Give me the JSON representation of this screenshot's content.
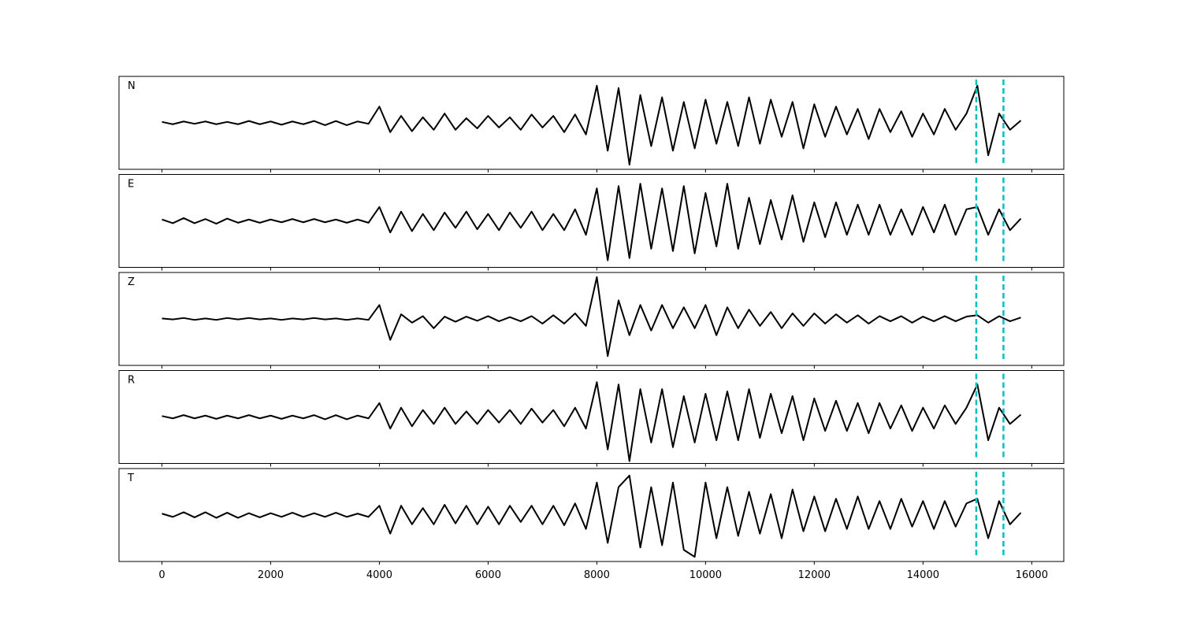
{
  "chart_data": [
    {
      "type": "line",
      "label": "N",
      "color": "#000000",
      "xlim": [
        -790,
        16590
      ],
      "ylim": [
        -1,
        1
      ],
      "vlines": [
        14980,
        15480
      ],
      "vline_color": "#00bfbf",
      "x": [
        0,
        200,
        400,
        600,
        800,
        1000,
        1200,
        1400,
        1600,
        1800,
        2000,
        2200,
        2400,
        2600,
        2800,
        3000,
        3200,
        3400,
        3600,
        3800,
        4000,
        4200,
        4400,
        4600,
        4800,
        5000,
        5200,
        5400,
        5600,
        5800,
        6000,
        6200,
        6400,
        6600,
        6800,
        7000,
        7200,
        7400,
        7600,
        7800,
        8000,
        8200,
        8400,
        8600,
        8800,
        9000,
        9200,
        9400,
        9600,
        9800,
        10000,
        10200,
        10400,
        10600,
        10800,
        11000,
        11200,
        11400,
        11600,
        11800,
        12000,
        12200,
        12400,
        12600,
        12800,
        13000,
        13200,
        13400,
        13600,
        13800,
        14000,
        14200,
        14400,
        14600,
        14800,
        15000,
        15200,
        15400,
        15600,
        15800
      ],
      "values": [
        0.02,
        -0.03,
        0.03,
        -0.02,
        0.03,
        -0.03,
        0.02,
        -0.03,
        0.04,
        -0.03,
        0.03,
        -0.04,
        0.03,
        -0.03,
        0.04,
        -0.05,
        0.04,
        -0.05,
        0.03,
        -0.02,
        0.35,
        -0.2,
        0.15,
        -0.18,
        0.12,
        -0.15,
        0.2,
        -0.15,
        0.1,
        -0.12,
        0.15,
        -0.1,
        0.12,
        -0.15,
        0.18,
        -0.1,
        0.15,
        -0.2,
        0.18,
        -0.25,
        0.8,
        -0.6,
        0.75,
        -0.9,
        0.6,
        -0.5,
        0.55,
        -0.6,
        0.45,
        -0.55,
        0.5,
        -0.45,
        0.45,
        -0.5,
        0.55,
        -0.45,
        0.5,
        -0.3,
        0.45,
        -0.55,
        0.4,
        -0.3,
        0.35,
        -0.25,
        0.3,
        -0.35,
        0.3,
        -0.2,
        0.25,
        -0.3,
        0.2,
        -0.25,
        0.3,
        -0.15,
        0.2,
        0.8,
        -0.7,
        0.2,
        -0.15,
        0.05
      ]
    },
    {
      "type": "line",
      "label": "E",
      "color": "#000000",
      "xlim": [
        -790,
        16590
      ],
      "ylim": [
        -1,
        1
      ],
      "vlines": [
        14980,
        15480
      ],
      "vline_color": "#00bfbf",
      "x": [
        0,
        200,
        400,
        600,
        800,
        1000,
        1200,
        1400,
        1600,
        1800,
        2000,
        2200,
        2400,
        2600,
        2800,
        3000,
        3200,
        3400,
        3600,
        3800,
        4000,
        4200,
        4400,
        4600,
        4800,
        5000,
        5200,
        5400,
        5600,
        5800,
        6000,
        6200,
        6400,
        6600,
        6800,
        7000,
        7200,
        7400,
        7600,
        7800,
        8000,
        8200,
        8400,
        8600,
        8800,
        9000,
        9200,
        9400,
        9600,
        9800,
        10000,
        10200,
        10400,
        10600,
        10800,
        11000,
        11200,
        11400,
        11600,
        11800,
        12000,
        12200,
        12400,
        12600,
        12800,
        13000,
        13200,
        13400,
        13600,
        13800,
        14000,
        14200,
        14400,
        14600,
        14800,
        15000,
        15200,
        15400,
        15600,
        15800
      ],
      "values": [
        0.03,
        -0.05,
        0.06,
        -0.05,
        0.04,
        -0.06,
        0.05,
        -0.04,
        0.03,
        -0.04,
        0.03,
        -0.03,
        0.04,
        -0.03,
        0.04,
        -0.03,
        0.03,
        -0.04,
        0.03,
        -0.04,
        0.3,
        -0.25,
        0.2,
        -0.22,
        0.15,
        -0.2,
        0.18,
        -0.15,
        0.2,
        -0.18,
        0.15,
        -0.2,
        0.18,
        -0.15,
        0.2,
        -0.2,
        0.15,
        -0.2,
        0.25,
        -0.3,
        0.7,
        -0.85,
        0.75,
        -0.8,
        0.8,
        -0.6,
        0.7,
        -0.65,
        0.75,
        -0.7,
        0.6,
        -0.55,
        0.8,
        -0.6,
        0.5,
        -0.5,
        0.45,
        -0.4,
        0.55,
        -0.45,
        0.4,
        -0.35,
        0.4,
        -0.3,
        0.35,
        -0.3,
        0.35,
        -0.3,
        0.25,
        -0.3,
        0.3,
        -0.25,
        0.35,
        -0.3,
        0.25,
        0.3,
        -0.3,
        0.25,
        -0.2,
        0.05
      ]
    },
    {
      "type": "line",
      "label": "Z",
      "color": "#000000",
      "xlim": [
        -790,
        16590
      ],
      "ylim": [
        -1,
        1
      ],
      "vlines": [
        14980,
        15480
      ],
      "vline_color": "#00bfbf",
      "x": [
        0,
        200,
        400,
        600,
        800,
        1000,
        1200,
        1400,
        1600,
        1800,
        2000,
        2200,
        2400,
        2600,
        2800,
        3000,
        3200,
        3400,
        3600,
        3800,
        4000,
        4200,
        4400,
        4600,
        4800,
        5000,
        5200,
        5400,
        5600,
        5800,
        6000,
        6200,
        6400,
        6600,
        6800,
        7000,
        7200,
        7400,
        7600,
        7800,
        8000,
        8200,
        8400,
        8600,
        8800,
        9000,
        9200,
        9400,
        9600,
        9800,
        10000,
        10200,
        10400,
        10600,
        10800,
        11000,
        11200,
        11400,
        11600,
        11800,
        12000,
        12200,
        12400,
        12600,
        12800,
        13000,
        13200,
        13400,
        13600,
        13800,
        14000,
        14200,
        14400,
        14600,
        14800,
        15000,
        15200,
        15400,
        15600,
        15800
      ],
      "values": [
        0.01,
        -0.01,
        0.02,
        -0.02,
        0.01,
        -0.02,
        0.02,
        -0.01,
        0.02,
        -0.01,
        0.01,
        -0.02,
        0.01,
        -0.01,
        0.02,
        -0.01,
        0.01,
        -0.02,
        0.01,
        -0.02,
        0.3,
        -0.45,
        0.1,
        -0.08,
        0.06,
        -0.2,
        0.05,
        -0.06,
        0.05,
        -0.04,
        0.06,
        -0.05,
        0.04,
        -0.05,
        0.06,
        -0.1,
        0.08,
        -0.1,
        0.12,
        -0.15,
        0.9,
        -0.8,
        0.4,
        -0.35,
        0.3,
        -0.25,
        0.3,
        -0.2,
        0.25,
        -0.2,
        0.3,
        -0.35,
        0.25,
        -0.2,
        0.2,
        -0.15,
        0.15,
        -0.2,
        0.12,
        -0.15,
        0.12,
        -0.1,
        0.1,
        -0.08,
        0.08,
        -0.1,
        0.06,
        -0.05,
        0.06,
        -0.08,
        0.05,
        -0.05,
        0.06,
        -0.05,
        0.05,
        0.08,
        -0.08,
        0.06,
        -0.05,
        0.03
      ]
    },
    {
      "type": "line",
      "label": "R",
      "color": "#000000",
      "xlim": [
        -790,
        16590
      ],
      "ylim": [
        -1,
        1
      ],
      "vlines": [
        14980,
        15480
      ],
      "vline_color": "#00bfbf",
      "x": [
        0,
        200,
        400,
        600,
        800,
        1000,
        1200,
        1400,
        1600,
        1800,
        2000,
        2200,
        2400,
        2600,
        2800,
        3000,
        3200,
        3400,
        3600,
        3800,
        4000,
        4200,
        4400,
        4600,
        4800,
        5000,
        5200,
        5400,
        5600,
        5800,
        6000,
        6200,
        6400,
        6600,
        6800,
        7000,
        7200,
        7400,
        7600,
        7800,
        8000,
        8200,
        8400,
        8600,
        8800,
        9000,
        9200,
        9400,
        9600,
        9800,
        10000,
        10200,
        10400,
        10600,
        10800,
        11000,
        11200,
        11400,
        11600,
        11800,
        12000,
        12200,
        12400,
        12600,
        12800,
        13000,
        13200,
        13400,
        13600,
        13800,
        14000,
        14200,
        14400,
        14600,
        14800,
        15000,
        15200,
        15400,
        15600,
        15800
      ],
      "values": [
        0.02,
        -0.03,
        0.04,
        -0.03,
        0.03,
        -0.04,
        0.03,
        -0.03,
        0.04,
        -0.03,
        0.03,
        -0.04,
        0.03,
        -0.03,
        0.04,
        -0.05,
        0.04,
        -0.05,
        0.03,
        -0.03,
        0.3,
        -0.25,
        0.2,
        -0.2,
        0.15,
        -0.15,
        0.2,
        -0.15,
        0.12,
        -0.15,
        0.15,
        -0.12,
        0.15,
        -0.15,
        0.18,
        -0.12,
        0.15,
        -0.2,
        0.2,
        -0.25,
        0.75,
        -0.7,
        0.7,
        -0.95,
        0.6,
        -0.55,
        0.6,
        -0.65,
        0.45,
        -0.55,
        0.5,
        -0.5,
        0.55,
        -0.5,
        0.6,
        -0.45,
        0.5,
        -0.35,
        0.45,
        -0.5,
        0.4,
        -0.3,
        0.35,
        -0.3,
        0.3,
        -0.35,
        0.3,
        -0.25,
        0.25,
        -0.3,
        0.2,
        -0.25,
        0.25,
        -0.15,
        0.2,
        0.7,
        -0.5,
        0.2,
        -0.15,
        0.05
      ]
    },
    {
      "type": "line",
      "label": "T",
      "color": "#000000",
      "xlim": [
        -790,
        16590
      ],
      "ylim": [
        -1,
        1
      ],
      "vlines": [
        14980,
        15480
      ],
      "vline_color": "#00bfbf",
      "x": [
        0,
        200,
        400,
        600,
        800,
        1000,
        1200,
        1400,
        1600,
        1800,
        2000,
        2200,
        2400,
        2600,
        2800,
        3000,
        3200,
        3400,
        3600,
        3800,
        4000,
        4200,
        4400,
        4600,
        4800,
        5000,
        5200,
        5400,
        5600,
        5800,
        6000,
        6200,
        6400,
        6600,
        6800,
        7000,
        7200,
        7400,
        7600,
        7800,
        8000,
        8200,
        8400,
        8600,
        8800,
        9000,
        9200,
        9400,
        9600,
        9800,
        10000,
        10200,
        10400,
        10600,
        10800,
        11000,
        11200,
        11400,
        11600,
        11800,
        12000,
        12200,
        12400,
        12600,
        12800,
        13000,
        13200,
        13400,
        13600,
        13800,
        14000,
        14200,
        14400,
        14600,
        14800,
        15000,
        15200,
        15400,
        15600,
        15800
      ],
      "values": [
        0.03,
        -0.04,
        0.06,
        -0.05,
        0.06,
        -0.06,
        0.05,
        -0.06,
        0.04,
        -0.05,
        0.04,
        -0.04,
        0.05,
        -0.04,
        0.04,
        -0.04,
        0.05,
        -0.04,
        0.03,
        -0.04,
        0.2,
        -0.4,
        0.2,
        -0.2,
        0.15,
        -0.2,
        0.22,
        -0.18,
        0.2,
        -0.2,
        0.18,
        -0.2,
        0.2,
        -0.15,
        0.2,
        -0.2,
        0.2,
        -0.22,
        0.25,
        -0.3,
        0.7,
        -0.6,
        0.6,
        0.85,
        -0.7,
        0.6,
        -0.65,
        0.7,
        -0.75,
        -0.9,
        0.7,
        -0.5,
        0.6,
        -0.45,
        0.5,
        -0.4,
        0.45,
        -0.5,
        0.55,
        -0.35,
        0.4,
        -0.35,
        0.35,
        -0.3,
        0.4,
        -0.3,
        0.3,
        -0.3,
        0.35,
        -0.25,
        0.3,
        -0.3,
        0.3,
        -0.25,
        0.25,
        0.35,
        -0.5,
        0.3,
        -0.2,
        0.05
      ],
      "xticks": [
        0,
        2000,
        4000,
        6000,
        8000,
        10000,
        12000,
        14000,
        16000
      ]
    }
  ]
}
